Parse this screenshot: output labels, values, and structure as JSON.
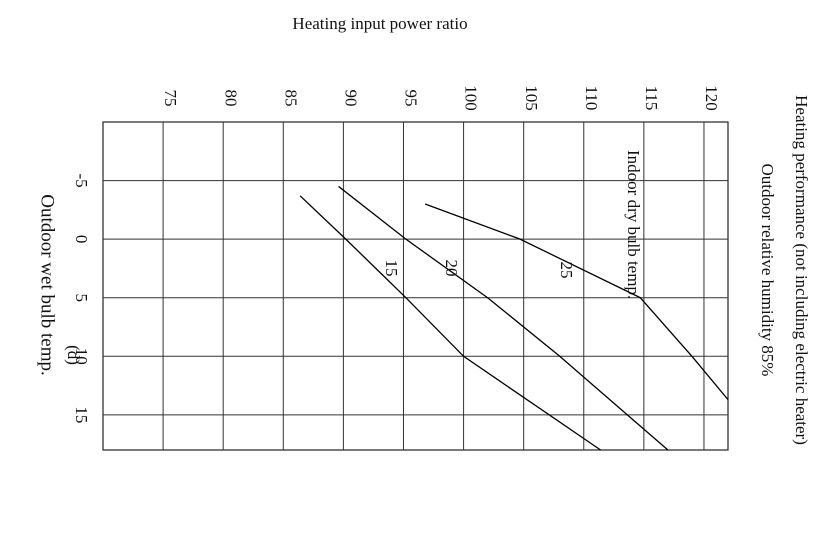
{
  "chart_data": {
    "type": "line",
    "title": "Heating performance (not including electric heater)",
    "subtitle": "Outdoor relative humidity 85%",
    "y_label": "Heating input power ratio",
    "x_label": "Outdoor wet bulb temp.",
    "legend_title": "Indoor dry bulb temp.",
    "caption": "(d)",
    "xlim": [
      -10,
      18
    ],
    "xticks": [
      -5,
      0,
      5,
      10,
      15
    ],
    "ylim": [
      70,
      122
    ],
    "yticks": [
      75,
      80,
      85,
      90,
      95,
      100,
      105,
      110,
      115,
      120
    ],
    "grid": true,
    "series": [
      {
        "name": "15",
        "color": "#000000",
        "x": [
          -3.7,
          0,
          5,
          10,
          18
        ],
        "values": [
          86.4,
          90.2,
          95.2,
          100,
          111.4
        ]
      },
      {
        "name": "20",
        "color": "#000000",
        "x": [
          -4.5,
          0,
          5,
          10,
          18
        ],
        "values": [
          89.6,
          95.2,
          102,
          108,
          117
        ]
      },
      {
        "name": "25",
        "color": "#000000",
        "x": [
          -3,
          0,
          5,
          10,
          13.7
        ],
        "values": [
          96.8,
          104.7,
          114.7,
          119,
          122
        ]
      }
    ]
  }
}
